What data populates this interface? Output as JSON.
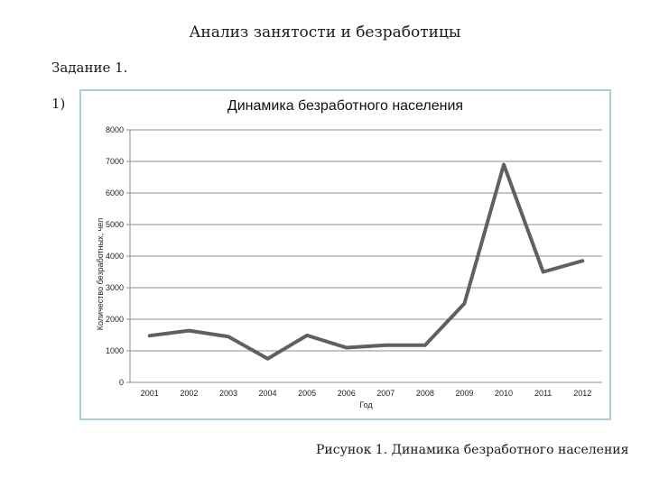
{
  "document": {
    "title": "Анализ занятости и безработицы",
    "task_label": "Задание 1.",
    "item_label": "1)",
    "caption": "Рисунок 1. Динамика безработного населения"
  },
  "chart_data": {
    "type": "line",
    "title": "Динамика безработного населения",
    "xlabel": "Год",
    "ylabel": "Количество безработных, чел",
    "categories": [
      "2001",
      "2002",
      "2003",
      "2004",
      "2005",
      "2006",
      "2007",
      "2008",
      "2009",
      "2010",
      "2011",
      "2012"
    ],
    "values": [
      1480,
      1640,
      1450,
      750,
      1490,
      1100,
      1180,
      1180,
      2500,
      6900,
      3500,
      3850
    ],
    "ylim": [
      0,
      8000
    ],
    "yticks": [
      0,
      1000,
      2000,
      3000,
      4000,
      5000,
      6000,
      7000,
      8000
    ],
    "grid": true,
    "legend": "none",
    "line_color": "#606060",
    "grid_color": "#8c8c8c"
  }
}
